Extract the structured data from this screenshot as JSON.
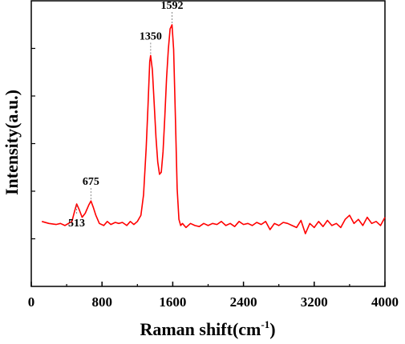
{
  "chart_data": {
    "type": "line",
    "xlabel": "Raman shift(cm",
    "xlabel_superscript": "-1",
    "xlabel_suffix": ")",
    "ylabel": "Intensity(a.u.)",
    "xlim": [
      0,
      4000
    ],
    "ylim": [
      0,
      1
    ],
    "xticks": [
      "0",
      "800",
      "1600",
      "2400",
      "3200",
      "4000"
    ],
    "y_ticklabels_shown": false,
    "grid": false,
    "line_color": "#ff0000",
    "series": [
      {
        "x": [
          120,
          200,
          280,
          330,
          380,
          420,
          460,
          490,
          513,
          540,
          575,
          610,
          650,
          675,
          700,
          730,
          770,
          820,
          860,
          900,
          950,
          990,
          1030,
          1080,
          1120,
          1160,
          1200,
          1240,
          1270,
          1300,
          1320,
          1340,
          1350,
          1370,
          1390,
          1410,
          1430,
          1450,
          1470,
          1490,
          1510,
          1530,
          1550,
          1570,
          1592,
          1610,
          1630,
          1650,
          1670,
          1690,
          1710,
          1750,
          1800,
          1850,
          1900,
          1950,
          2000,
          2050,
          2100,
          2150,
          2200,
          2250,
          2300,
          2350,
          2400,
          2450,
          2500,
          2550,
          2600,
          2650,
          2700,
          2750,
          2800,
          2850,
          2900,
          2950,
          3000,
          3050,
          3100,
          3150,
          3200,
          3250,
          3300,
          3350,
          3400,
          3450,
          3500,
          3550,
          3600,
          3650,
          3700,
          3750,
          3800,
          3850,
          3900,
          3950,
          4000
        ],
        "y": [
          0.04,
          0.03,
          0.025,
          0.03,
          0.02,
          0.03,
          0.04,
          0.09,
          0.125,
          0.1,
          0.06,
          0.08,
          0.12,
          0.14,
          0.11,
          0.07,
          0.03,
          0.02,
          0.04,
          0.025,
          0.035,
          0.03,
          0.035,
          0.02,
          0.04,
          0.025,
          0.04,
          0.07,
          0.17,
          0.4,
          0.6,
          0.82,
          0.85,
          0.78,
          0.62,
          0.45,
          0.33,
          0.27,
          0.28,
          0.38,
          0.55,
          0.74,
          0.88,
          0.98,
          1.0,
          0.88,
          0.55,
          0.2,
          0.05,
          0.02,
          0.03,
          0.01,
          0.03,
          0.02,
          0.015,
          0.03,
          0.02,
          0.03,
          0.025,
          0.04,
          0.02,
          0.03,
          0.015,
          0.04,
          0.025,
          0.03,
          0.02,
          0.035,
          0.025,
          0.04,
          0.0,
          0.03,
          0.02,
          0.035,
          0.03,
          0.02,
          0.01,
          0.045,
          -0.02,
          0.03,
          0.01,
          0.04,
          0.015,
          0.045,
          0.02,
          0.03,
          0.01,
          0.05,
          0.07,
          0.03,
          0.05,
          0.02,
          0.06,
          0.03,
          0.04,
          0.02,
          0.06
        ]
      }
    ],
    "annotations": [
      {
        "text": "513",
        "x": 513,
        "y": 0.125,
        "label_position": "below"
      },
      {
        "text": "675",
        "x": 675,
        "y": 0.14,
        "label_position": "above"
      },
      {
        "text": "1350",
        "x": 1350,
        "y": 0.85,
        "label_position": "above"
      },
      {
        "text": "1592",
        "x": 1592,
        "y": 1.0,
        "label_position": "above"
      }
    ]
  }
}
